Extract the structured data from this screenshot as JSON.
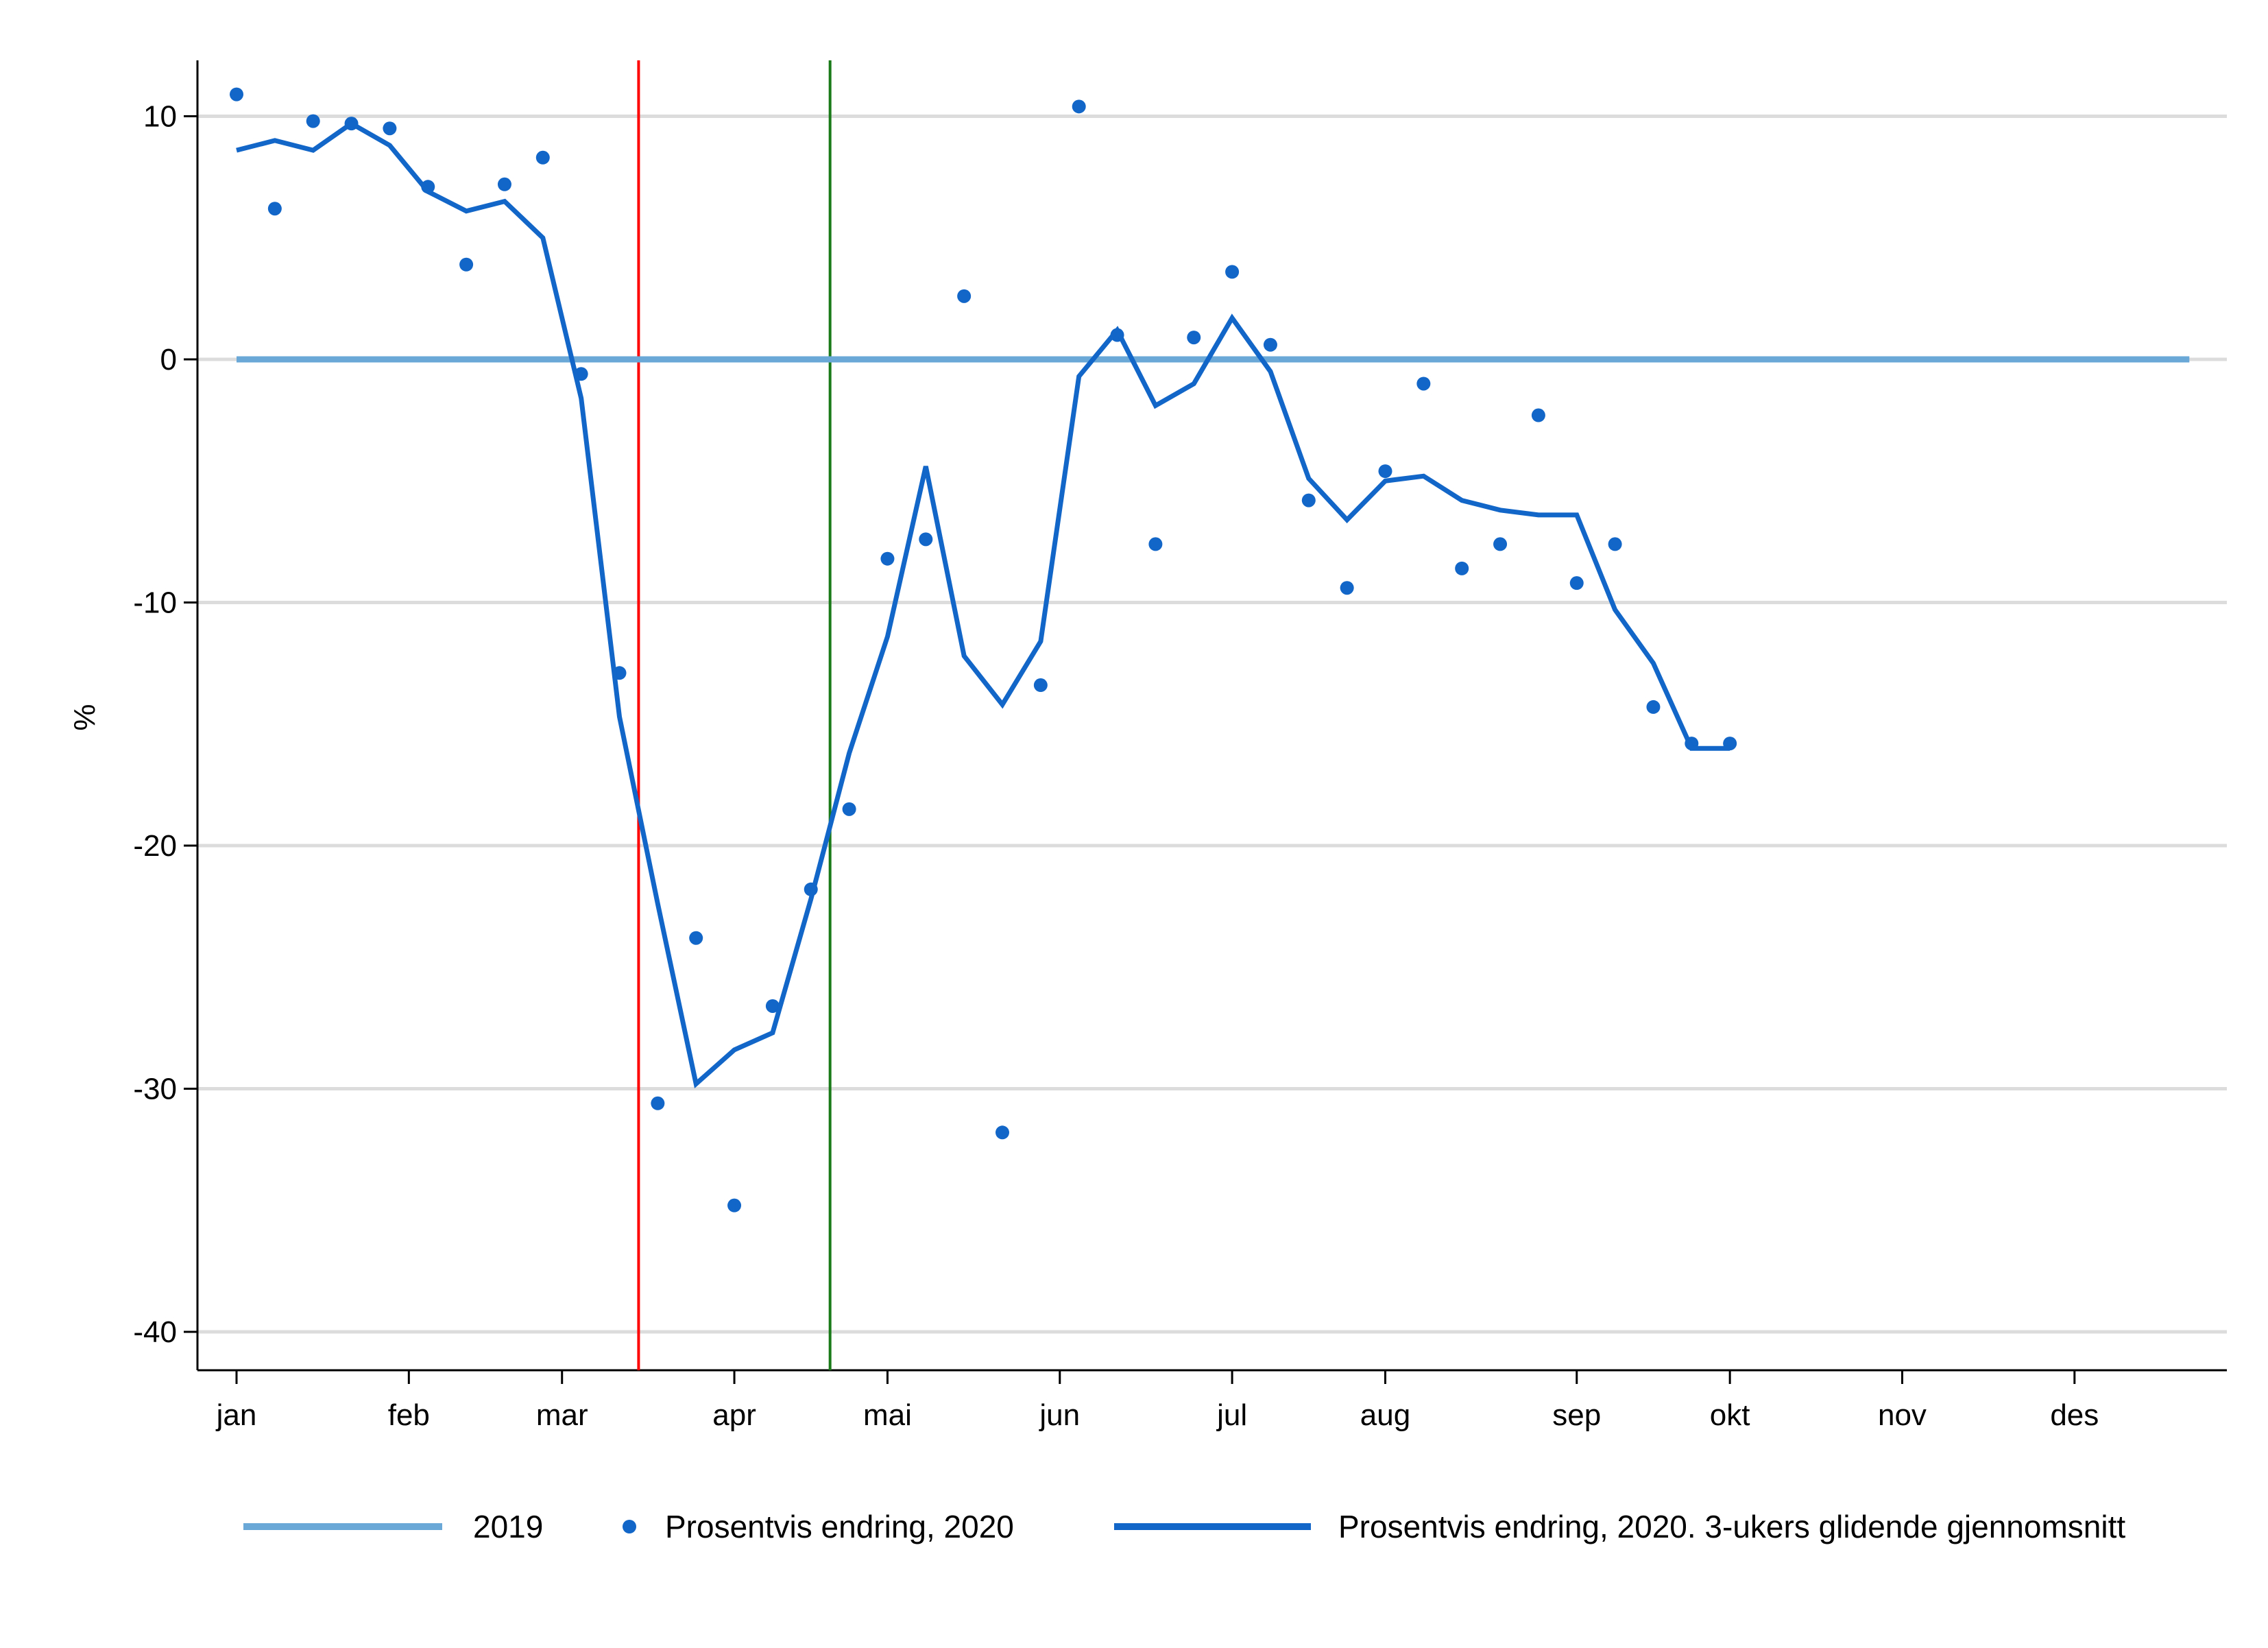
{
  "chart_data": {
    "type": "line",
    "title": "",
    "ylabel": "%",
    "xlabel": "",
    "ylim": [
      -41.5,
      12.5
    ],
    "xlim": [
      1,
      53
    ],
    "grid": true,
    "legend_position": "bottom",
    "yticks": [
      10,
      0,
      -10,
      -20,
      -30,
      -40
    ],
    "xticks": [
      {
        "label": "jan",
        "week": 1
      },
      {
        "label": "feb",
        "week": 5.5
      },
      {
        "label": "mar",
        "week": 9.5
      },
      {
        "label": "apr",
        "week": 14
      },
      {
        "label": "mai",
        "week": 18
      },
      {
        "label": "jun",
        "week": 22.5
      },
      {
        "label": "jul",
        "week": 27
      },
      {
        "label": "aug",
        "week": 31
      },
      {
        "label": "sep",
        "week": 36
      },
      {
        "label": "okt",
        "week": 40
      },
      {
        "label": "nov",
        "week": 44.5
      },
      {
        "label": "des",
        "week": 49
      }
    ],
    "vlines": [
      {
        "week": 11.5,
        "color": "#ff0000"
      },
      {
        "week": 16.5,
        "color": "#1a7a1a"
      }
    ],
    "series": [
      {
        "name": "2019",
        "kind": "line",
        "color": "#6aa8d8",
        "x": [
          1,
          52
        ],
        "y": [
          0,
          0
        ]
      },
      {
        "name": "Prosentvis endring, 2020",
        "kind": "scatter",
        "color": "#1166c8",
        "x": [
          1,
          2,
          3,
          4,
          5,
          6,
          7,
          8,
          9,
          10,
          11,
          12,
          13,
          14,
          15,
          16,
          17,
          18,
          19,
          20,
          21,
          22,
          23,
          24,
          25,
          26,
          27,
          28,
          29,
          30,
          31,
          32,
          33,
          34,
          35,
          36,
          37,
          38,
          39,
          40
        ],
        "y": [
          10.9,
          6.2,
          9.8,
          9.7,
          9.5,
          7.1,
          3.9,
          7.2,
          8.3,
          -0.6,
          -12.9,
          -30.6,
          -23.8,
          -34.8,
          -26.6,
          -21.8,
          -18.5,
          -8.2,
          -7.4,
          2.6,
          -31.8,
          -13.4,
          10.4,
          1.0,
          -7.6,
          0.9,
          3.6,
          0.6,
          -5.8,
          -9.4,
          -4.6,
          -1.0,
          -8.6,
          -7.6,
          -2.3,
          -9.2,
          -7.6,
          -14.3,
          -15.8,
          -15.8
        ]
      },
      {
        "name": "Prosentvis endring, 2020. 3-ukers glidende gjennomsnitt",
        "kind": "line",
        "color": "#1166c8",
        "x": [
          1,
          2,
          3,
          4,
          5,
          6,
          7,
          8,
          9,
          10,
          11,
          12,
          13,
          14,
          15,
          16,
          17,
          18,
          19,
          20,
          21,
          22,
          23,
          24,
          25,
          26,
          27,
          28,
          29,
          30,
          31,
          32,
          33,
          34,
          35,
          36,
          37,
          38,
          39,
          40
        ],
        "y": [
          8.6,
          9.0,
          8.6,
          9.7,
          8.8,
          6.9,
          6.1,
          6.5,
          5.0,
          -1.6,
          -14.7,
          -22.4,
          -29.8,
          -28.4,
          -27.7,
          -22.2,
          -16.2,
          -11.4,
          -4.4,
          -12.2,
          -14.2,
          -11.6,
          -0.7,
          1.2,
          -1.9,
          -1.0,
          1.7,
          -0.5,
          -4.9,
          -6.6,
          -5.0,
          -4.8,
          -5.8,
          -6.2,
          -6.4,
          -6.4,
          -10.3,
          -12.5,
          -16.0,
          -16.0
        ]
      }
    ]
  }
}
